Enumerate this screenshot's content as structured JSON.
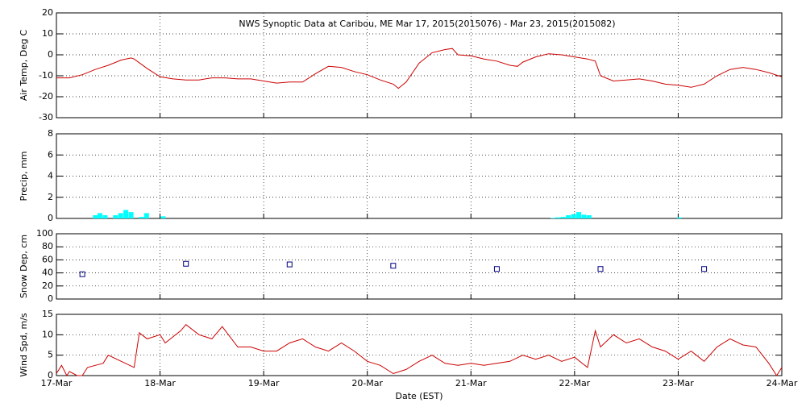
{
  "chart_data": [
    {
      "type": "line",
      "title": "NWS Synoptic Data at Caribou, ME   Mar 17, 2015(2015076) - Mar 23, 2015(2015082)",
      "y_label": "Air Temp, Deg C",
      "x": [
        0,
        0.125,
        0.25,
        0.375,
        0.5,
        0.625,
        0.72,
        0.75,
        0.875,
        1.0,
        1.125,
        1.25,
        1.375,
        1.5,
        1.625,
        1.75,
        1.875,
        2.0,
        2.125,
        2.25,
        2.375,
        2.5,
        2.625,
        2.75,
        2.875,
        3.0,
        3.125,
        3.25,
        3.3,
        3.375,
        3.5,
        3.625,
        3.75,
        3.82,
        3.875,
        4.0,
        4.125,
        4.25,
        4.375,
        4.45,
        4.5,
        4.625,
        4.75,
        4.875,
        5.0,
        5.125,
        5.2,
        5.25,
        5.375,
        5.5,
        5.625,
        5.75,
        5.875,
        6.0,
        6.125,
        6.25,
        6.375,
        6.5,
        6.625,
        6.75,
        6.875,
        7.0
      ],
      "values": [
        -11,
        -11,
        -9.5,
        -7,
        -5,
        -2.5,
        -1.5,
        -2,
        -6.5,
        -10.5,
        -11.5,
        -12,
        -12,
        -11,
        -11,
        -11.5,
        -11.5,
        -12.5,
        -13.5,
        -13,
        -13,
        -9,
        -5.5,
        -6,
        -8,
        -9.5,
        -12,
        -14,
        -16,
        -13,
        -4,
        1,
        2.5,
        3,
        0,
        -0.5,
        -2,
        -3,
        -5,
        -5.5,
        -3.5,
        -1,
        0.5,
        0,
        -1,
        -2,
        -3,
        -10,
        -12.5,
        -12,
        -11.5,
        -12.5,
        -14,
        -14.5,
        -15.5,
        -14,
        -10,
        -7,
        -6,
        -7,
        -8.5,
        -10.5
      ],
      "color": "#cc0000",
      "xlim": [
        0,
        7
      ],
      "xticks": [
        0,
        1,
        2,
        3,
        4,
        5,
        6,
        7
      ],
      "ylim": [
        -30,
        20
      ],
      "yticks": [
        -30,
        -20,
        -10,
        0,
        10,
        20
      ],
      "grid": true
    },
    {
      "type": "bar",
      "y_label": "Precip, mm",
      "x": [
        0.375,
        0.42,
        0.47,
        0.57,
        0.62,
        0.67,
        0.72,
        0.82,
        0.87,
        1.03,
        4.79,
        4.84,
        4.89,
        4.94,
        4.99,
        5.04,
        5.09,
        5.14,
        6.01
      ],
      "values": [
        0.3,
        0.5,
        0.3,
        0.3,
        0.5,
        0.8,
        0.6,
        0.15,
        0.5,
        0.2,
        0.05,
        0.1,
        0.15,
        0.3,
        0.4,
        0.6,
        0.35,
        0.3,
        0.1
      ],
      "color": "#00ffff",
      "xlim": [
        0,
        7
      ],
      "xticks": [
        0,
        1,
        2,
        3,
        4,
        5,
        6,
        7
      ],
      "ylim": [
        0,
        8
      ],
      "yticks": [
        0,
        2,
        4,
        6,
        8
      ],
      "grid": true
    },
    {
      "type": "scatter",
      "y_label": "Snow Dep, cm",
      "x": [
        0.25,
        1.25,
        2.25,
        3.25,
        4.25,
        5.25,
        6.25
      ],
      "values": [
        38,
        54,
        53,
        51,
        46,
        46,
        46
      ],
      "color": "#000080",
      "xlim": [
        0,
        7
      ],
      "xticks": [
        0,
        1,
        2,
        3,
        4,
        5,
        6,
        7
      ],
      "ylim": [
        0,
        100
      ],
      "yticks": [
        0,
        20,
        40,
        60,
        80,
        100
      ],
      "grid": true
    },
    {
      "type": "line",
      "y_label": "Wind Spd, m/s",
      "x_label": "Date (EST)",
      "x": [
        0,
        0.05,
        0.1,
        0.125,
        0.2,
        0.25,
        0.3,
        0.375,
        0.45,
        0.5,
        0.625,
        0.75,
        0.8,
        0.875,
        1.0,
        1.05,
        1.125,
        1.2,
        1.25,
        1.375,
        1.5,
        1.6,
        1.75,
        1.875,
        2.0,
        2.125,
        2.25,
        2.375,
        2.5,
        2.625,
        2.75,
        2.875,
        3.0,
        3.125,
        3.25,
        3.375,
        3.5,
        3.625,
        3.75,
        3.875,
        4.0,
        4.125,
        4.25,
        4.375,
        4.5,
        4.625,
        4.75,
        4.875,
        5.0,
        5.125,
        5.2,
        5.25,
        5.375,
        5.5,
        5.625,
        5.75,
        5.875,
        6.0,
        6.125,
        6.25,
        6.375,
        6.5,
        6.625,
        6.75,
        6.875,
        6.95,
        7.0
      ],
      "values": [
        0.5,
        2.5,
        0,
        1,
        0,
        0,
        2,
        2.5,
        3,
        5,
        3.5,
        2,
        10.5,
        9,
        10,
        8,
        9.5,
        11,
        12.5,
        10,
        9,
        12,
        7,
        7,
        6,
        6,
        8,
        9,
        7,
        6,
        8,
        6,
        3.5,
        2.5,
        0.5,
        1.5,
        3.5,
        5,
        3,
        2.5,
        3,
        2.5,
        3,
        3.5,
        5,
        4,
        5,
        3.5,
        4.5,
        2,
        11,
        7,
        10,
        8,
        9,
        7,
        6,
        4,
        6,
        3.5,
        7,
        9,
        7.5,
        7,
        3,
        0,
        2
      ],
      "color": "#cc0000",
      "xlim": [
        0,
        7
      ],
      "xticks": [
        {
          "value": 0,
          "label": "17-Mar"
        },
        {
          "value": 1,
          "label": "18-Mar"
        },
        {
          "value": 2,
          "label": "19-Mar"
        },
        {
          "value": 3,
          "label": "20-Mar"
        },
        {
          "value": 4,
          "label": "21-Mar"
        },
        {
          "value": 5,
          "label": "22-Mar"
        },
        {
          "value": 6,
          "label": "23-Mar"
        },
        {
          "value": 7,
          "label": "24-Mar"
        }
      ],
      "ylim": [
        0,
        15
      ],
      "yticks": [
        0,
        5,
        10,
        15
      ],
      "grid": true
    }
  ]
}
